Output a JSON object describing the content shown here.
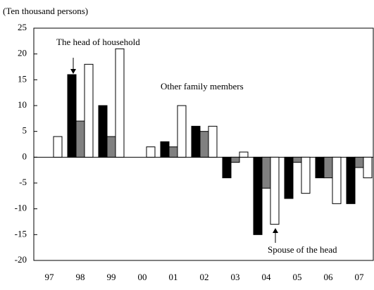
{
  "chart_data": {
    "type": "bar",
    "title": "(Ten thousand persons)",
    "categories": [
      "97",
      "98",
      "99",
      "00",
      "01",
      "02",
      "03",
      "04",
      "05",
      "06",
      "07"
    ],
    "series": [
      {
        "name": "The head of household",
        "color": "#000000",
        "values": [
          0,
          16,
          10,
          0,
          3,
          6,
          -4,
          -15,
          -8,
          -4,
          -9
        ]
      },
      {
        "name": "Other family members",
        "color": "#808080",
        "values": [
          0,
          7,
          4,
          0,
          2,
          5,
          -1,
          -6,
          -1,
          -4,
          -2
        ]
      },
      {
        "name": "Spouse of the head",
        "color": "#ffffff",
        "values": [
          4,
          18,
          21,
          2,
          10,
          6,
          1,
          -13,
          -7,
          -9,
          -4
        ]
      }
    ],
    "ylim": [
      -20,
      25
    ],
    "yticks": [
      -20,
      -15,
      -10,
      -5,
      0,
      5,
      10,
      15,
      20,
      25
    ]
  }
}
